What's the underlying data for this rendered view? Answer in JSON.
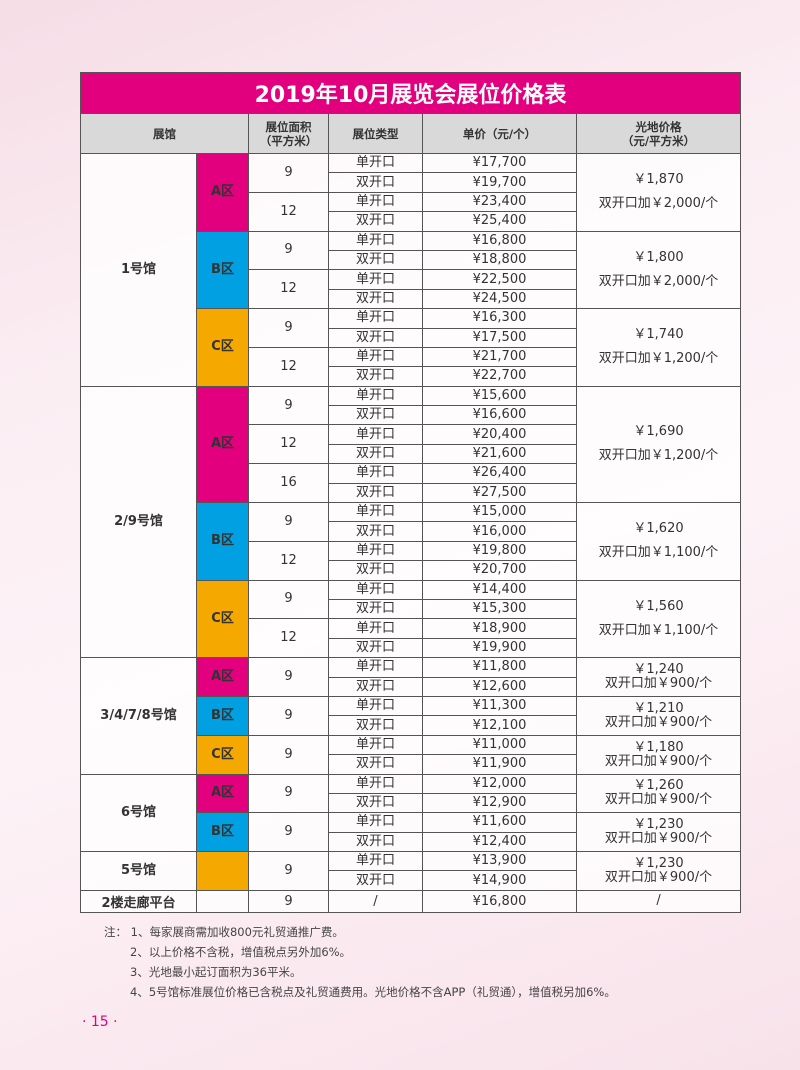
{
  "title": "2019年10月展览会展位价格表",
  "headers": {
    "hall": "展馆",
    "area": [
      "展位面积",
      "（平方米）"
    ],
    "type": "展位类型",
    "price": "单价（元/个）",
    "ground": [
      "光地价格",
      "（元/平方米）"
    ]
  },
  "zone_colors": {
    "A": "#e2007f",
    "B": "#00a0e2",
    "C": "#f4a800"
  },
  "halls": [
    {
      "name": "1号馆",
      "zones": [
        {
          "label": "A区",
          "color": "#e2007f",
          "ground": [
            "￥1,870",
            "双开口加￥2,000/个"
          ],
          "sizes": [
            {
              "area": "9",
              "rows": [
                {
                  "type": "单开口",
                  "price": "¥17,700"
                },
                {
                  "type": "双开口",
                  "price": "¥19,700"
                }
              ]
            },
            {
              "area": "12",
              "rows": [
                {
                  "type": "单开口",
                  "price": "¥23,400"
                },
                {
                  "type": "双开口",
                  "price": "¥25,400"
                }
              ]
            }
          ]
        },
        {
          "label": "B区",
          "color": "#00a0e2",
          "ground": [
            "￥1,800",
            "双开口加￥2,000/个"
          ],
          "sizes": [
            {
              "area": "9",
              "rows": [
                {
                  "type": "单开口",
                  "price": "¥16,800"
                },
                {
                  "type": "双开口",
                  "price": "¥18,800"
                }
              ]
            },
            {
              "area": "12",
              "rows": [
                {
                  "type": "单开口",
                  "price": "¥22,500"
                },
                {
                  "type": "双开口",
                  "price": "¥24,500"
                }
              ]
            }
          ]
        },
        {
          "label": "C区",
          "color": "#f4a800",
          "ground": [
            "￥1,740",
            "双开口加￥1,200/个"
          ],
          "sizes": [
            {
              "area": "9",
              "rows": [
                {
                  "type": "单开口",
                  "price": "¥16,300"
                },
                {
                  "type": "双开口",
                  "price": "¥17,500"
                }
              ]
            },
            {
              "area": "12",
              "rows": [
                {
                  "type": "单开口",
                  "price": "¥21,700"
                },
                {
                  "type": "双开口",
                  "price": "¥22,700"
                }
              ]
            }
          ]
        }
      ]
    },
    {
      "name": "2/9号馆",
      "zones": [
        {
          "label": "A区",
          "color": "#e2007f",
          "ground": [
            "￥1,690",
            "双开口加￥1,200/个"
          ],
          "sizes": [
            {
              "area": "9",
              "rows": [
                {
                  "type": "单开口",
                  "price": "¥15,600"
                },
                {
                  "type": "双开口",
                  "price": "¥16,600"
                }
              ]
            },
            {
              "area": "12",
              "rows": [
                {
                  "type": "单开口",
                  "price": "¥20,400"
                },
                {
                  "type": "双开口",
                  "price": "¥21,600"
                }
              ]
            },
            {
              "area": "16",
              "rows": [
                {
                  "type": "单开口",
                  "price": "¥26,400"
                },
                {
                  "type": "双开口",
                  "price": "¥27,500"
                }
              ]
            }
          ]
        },
        {
          "label": "B区",
          "color": "#00a0e2",
          "ground": [
            "￥1,620",
            "双开口加￥1,100/个"
          ],
          "sizes": [
            {
              "area": "9",
              "rows": [
                {
                  "type": "单开口",
                  "price": "¥15,000"
                },
                {
                  "type": "双开口",
                  "price": "¥16,000"
                }
              ]
            },
            {
              "area": "12",
              "rows": [
                {
                  "type": "单开口",
                  "price": "¥19,800"
                },
                {
                  "type": "双开口",
                  "price": "¥20,700"
                }
              ]
            }
          ]
        },
        {
          "label": "C区",
          "color": "#f4a800",
          "ground": [
            "￥1,560",
            "双开口加￥1,100/个"
          ],
          "sizes": [
            {
              "area": "9",
              "rows": [
                {
                  "type": "单开口",
                  "price": "¥14,400"
                },
                {
                  "type": "双开口",
                  "price": "¥15,300"
                }
              ]
            },
            {
              "area": "12",
              "rows": [
                {
                  "type": "单开口",
                  "price": "¥18,900"
                },
                {
                  "type": "双开口",
                  "price": "¥19,900"
                }
              ]
            }
          ]
        }
      ]
    },
    {
      "name": "3/4/7/8号馆",
      "zones": [
        {
          "label": "A区",
          "color": "#e2007f",
          "ground": [
            "￥1,240",
            "双开口加￥900/个"
          ],
          "sizes": [
            {
              "area": "9",
              "rows": [
                {
                  "type": "单开口",
                  "price": "¥11,800"
                },
                {
                  "type": "双开口",
                  "price": "¥12,600"
                }
              ]
            }
          ]
        },
        {
          "label": "B区",
          "color": "#00a0e2",
          "ground": [
            "￥1,210",
            "双开口加￥900/个"
          ],
          "sizes": [
            {
              "area": "9",
              "rows": [
                {
                  "type": "单开口",
                  "price": "¥11,300"
                },
                {
                  "type": "双开口",
                  "price": "¥12,100"
                }
              ]
            }
          ]
        },
        {
          "label": "C区",
          "color": "#f4a800",
          "ground": [
            "￥1,180",
            "双开口加￥900/个"
          ],
          "sizes": [
            {
              "area": "9",
              "rows": [
                {
                  "type": "单开口",
                  "price": "¥11,000"
                },
                {
                  "type": "双开口",
                  "price": "¥11,900"
                }
              ]
            }
          ]
        }
      ]
    },
    {
      "name": "6号馆",
      "zones": [
        {
          "label": "A区",
          "color": "#e2007f",
          "ground": [
            "￥1,260",
            "双开口加￥900/个"
          ],
          "sizes": [
            {
              "area": "9",
              "rows": [
                {
                  "type": "单开口",
                  "price": "¥12,000"
                },
                {
                  "type": "双开口",
                  "price": "¥12,900"
                }
              ]
            }
          ]
        },
        {
          "label": "B区",
          "color": "#00a0e2",
          "ground": [
            "￥1,230",
            "双开口加￥900/个"
          ],
          "sizes": [
            {
              "area": "9",
              "rows": [
                {
                  "type": "单开口",
                  "price": "¥11,600"
                },
                {
                  "type": "双开口",
                  "price": "¥12,400"
                }
              ]
            }
          ]
        }
      ]
    },
    {
      "name": "5号馆",
      "zones": [
        {
          "label": "",
          "color": "#f4a800",
          "ground": [
            "￥1,230",
            "双开口加￥900/个"
          ],
          "sizes": [
            {
              "area": "9",
              "rows": [
                {
                  "type": "单开口",
                  "price": "¥13,900"
                },
                {
                  "type": "双开口",
                  "price": "¥14,900"
                }
              ]
            }
          ]
        }
      ]
    },
    {
      "name": "2楼走廊平台",
      "zones": [
        {
          "label": "",
          "color": "",
          "ground": [
            "/"
          ],
          "sizes": [
            {
              "area": "9",
              "rows": [
                {
                  "type": "/",
                  "price": "¥16,800"
                }
              ]
            }
          ]
        }
      ]
    }
  ],
  "notes": [
    "注：  1、每家展商需加收800元礼贸通推广费。",
    "2、以上价格不含税，增值税点另外加6%。",
    "3、光地最小起订面积为36平米。",
    "4、5号馆标准展位价格已含税点及礼贸通费用。光地价格不含APP（礼贸通），增值税另加6%。"
  ],
  "page_number": "· 15 ·"
}
